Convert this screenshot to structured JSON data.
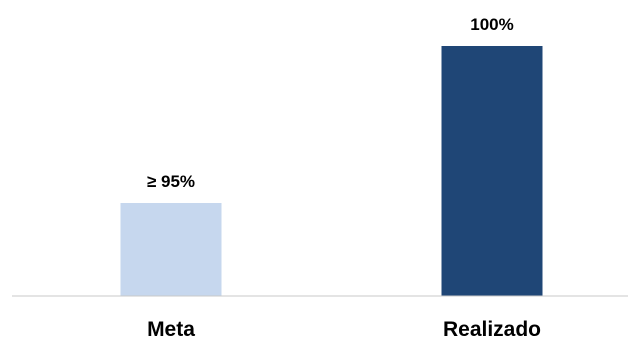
{
  "chart_data": {
    "type": "bar",
    "categories": [
      "Meta",
      "Realizado"
    ],
    "values": [
      95,
      100
    ],
    "data_labels": [
      "≥ 95%",
      "100%"
    ],
    "colors": [
      "#c6d7ee",
      "#1f4676"
    ],
    "axis_color": "#c8c8c8",
    "grid": false,
    "legend": "none",
    "title": "",
    "xlabel": "",
    "ylabel": ""
  }
}
